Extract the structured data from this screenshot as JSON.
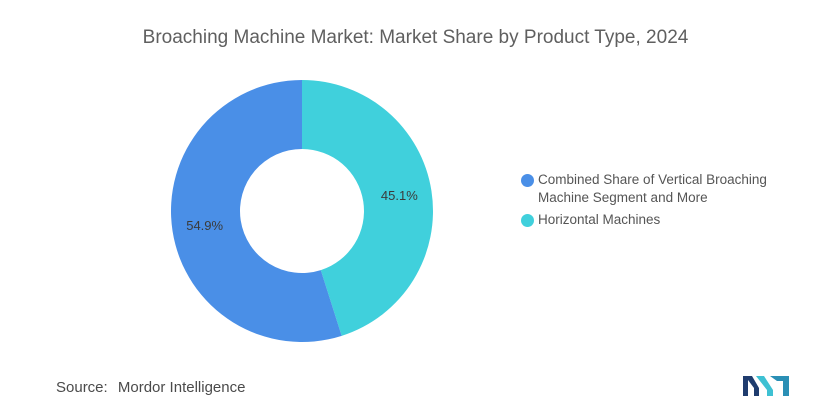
{
  "title": "Broaching Machine Market: Market Share by Product Type, 2024",
  "chart_data": {
    "type": "pie",
    "style": "donut",
    "title": "Broaching Machine Market: Market Share by Product Type, 2024",
    "series": [
      {
        "name": "Horizontal Machines",
        "value": 45.1,
        "label": "45.1%",
        "color": "#40d0dc"
      },
      {
        "name": "Combined Share of Vertical Broaching Machine Segment and More",
        "value": 54.9,
        "label": "54.9%",
        "color": "#4a8fe7"
      }
    ],
    "legend_position": "right"
  },
  "legend": [
    {
      "label": "Combined Share of Vertical Broaching Machine Segment and More",
      "color": "#4a8fe7"
    },
    {
      "label": "Horizontal Machines",
      "color": "#40d0dc"
    }
  ],
  "source": {
    "label": "Source:",
    "value": "Mordor Intelligence"
  },
  "logo": {
    "icon": "mordor-intelligence-logo-icon",
    "colors": [
      "#1f3c6e",
      "#3ec1d3"
    ]
  }
}
